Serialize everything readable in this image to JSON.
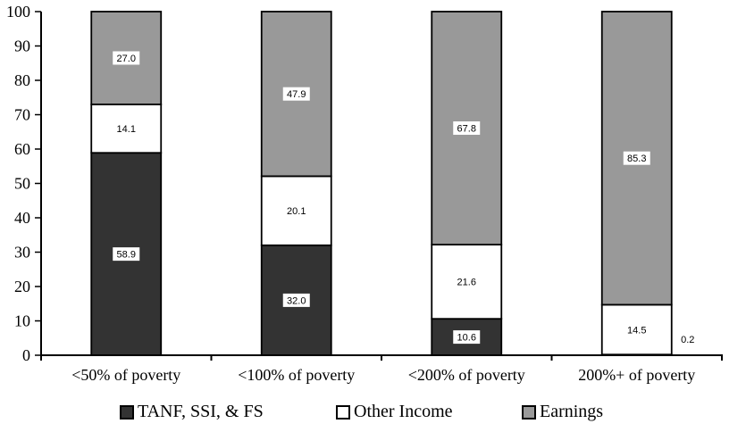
{
  "chart_data": {
    "type": "stacked-bar",
    "title": "",
    "categories": [
      "<50% of poverty",
      "<100% of poverty",
      "<200% of poverty",
      "200%+ of poverty"
    ],
    "series": [
      {
        "name": "TANF, SSI, & FS",
        "color": "#333333",
        "values": [
          58.9,
          32.0,
          10.6,
          0.2
        ],
        "value_labels": [
          "58.9",
          "32.0",
          "10.6",
          "0.2"
        ]
      },
      {
        "name": "Other Income",
        "color": "#ffffff",
        "values": [
          14.1,
          20.1,
          21.6,
          14.5
        ],
        "value_labels": [
          "14.1",
          "20.1",
          "21.6",
          "14.5"
        ]
      },
      {
        "name": "Earnings",
        "color": "#999999",
        "values": [
          27.0,
          47.9,
          67.8,
          85.3
        ],
        "value_labels": [
          "27.0",
          "47.9",
          "67.8",
          "85.3"
        ]
      }
    ],
    "y_axis": {
      "min": 0,
      "max": 100,
      "step": 10,
      "tick_labels": [
        "0",
        "10",
        "20",
        "30",
        "40",
        "50",
        "60",
        "70",
        "80",
        "90",
        "100"
      ]
    },
    "legend": {
      "position": "bottom",
      "entries": [
        "TANF, SSI, & FS",
        "Other Income",
        "Earnings"
      ]
    },
    "grid": false,
    "axis_color": "#000000",
    "bar_outline_color": "#000000",
    "value_label_box_color": "#ffffff"
  }
}
